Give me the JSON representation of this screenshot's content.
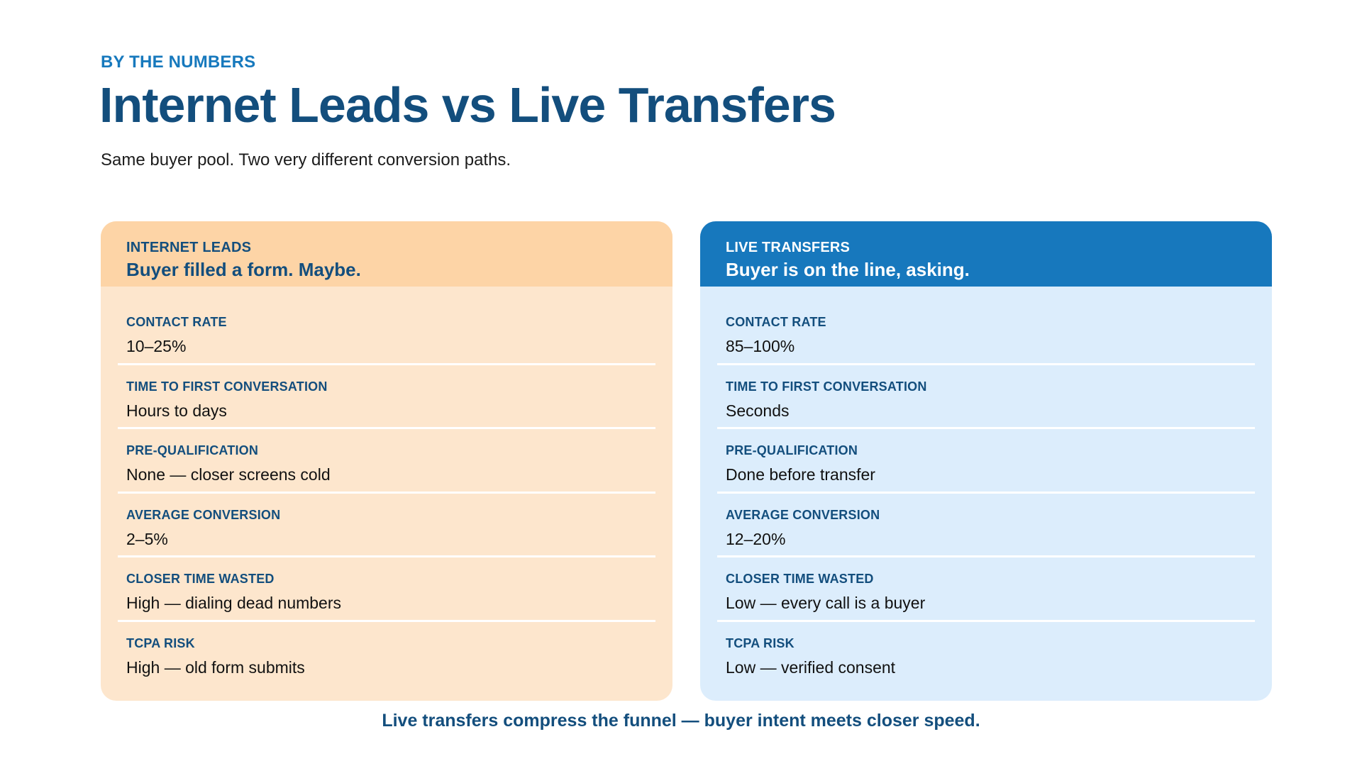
{
  "header": {
    "eyebrow": "BY THE NUMBERS",
    "title": "Internet Leads vs Live Transfers",
    "subtitle": "Same buyer pool. Two very different conversion paths."
  },
  "cards": {
    "internet_leads": {
      "label": "INTERNET LEADS",
      "tagline": "Buyer filled a form. Maybe.",
      "color": "#fdd4a6",
      "rows": [
        {
          "label": "CONTACT RATE",
          "value": "10–25%"
        },
        {
          "label": "TIME TO FIRST CONVERSATION",
          "value": "Hours to days"
        },
        {
          "label": "PRE-QUALIFICATION",
          "value": "None — closer screens cold"
        },
        {
          "label": "AVERAGE CONVERSION",
          "value": "2–5%"
        },
        {
          "label": "CLOSER TIME WASTED",
          "value": "High — dialing dead numbers"
        },
        {
          "label": "TCPA RISK",
          "value": "High — old form submits"
        }
      ]
    },
    "live_transfers": {
      "label": "LIVE TRANSFERS",
      "tagline": "Buyer is on the line, asking.",
      "color": "#1778bd",
      "rows": [
        {
          "label": "CONTACT RATE",
          "value": "85–100%"
        },
        {
          "label": "TIME TO FIRST CONVERSATION",
          "value": "Seconds"
        },
        {
          "label": "PRE-QUALIFICATION",
          "value": "Done before transfer"
        },
        {
          "label": "AVERAGE CONVERSION",
          "value": "12–20%"
        },
        {
          "label": "CLOSER TIME WASTED",
          "value": "Low — every call is a buyer"
        },
        {
          "label": "TCPA RISK",
          "value": "Low — verified consent"
        }
      ]
    }
  },
  "footer": {
    "text": "Live transfers compress the funnel — buyer intent meets closer speed."
  }
}
